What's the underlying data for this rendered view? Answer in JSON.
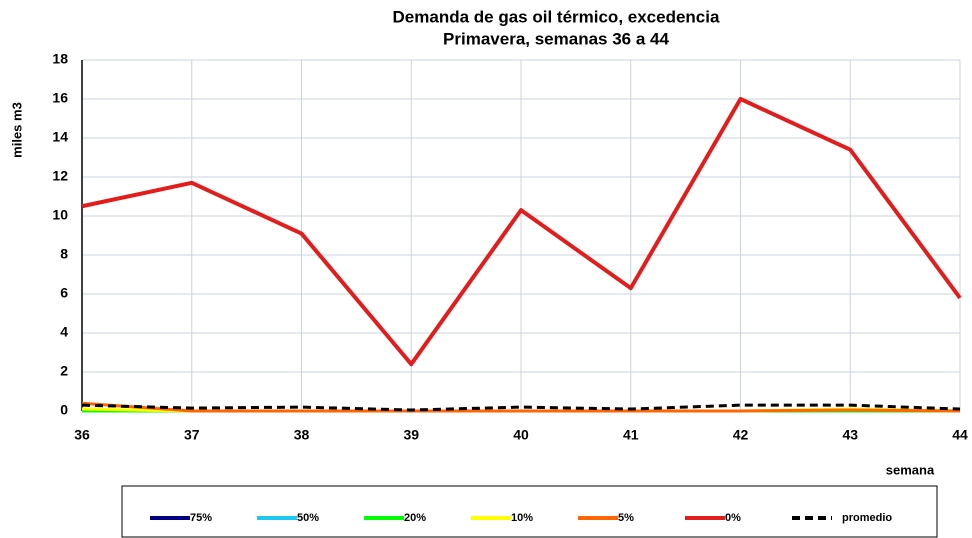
{
  "chart_data": {
    "type": "line",
    "title": "Demanda de gas oil térmico, excedencia",
    "subtitle": "Primavera, semanas 36 a 44",
    "x_label": "semana",
    "y_label": "miles m3",
    "x": [
      36,
      37,
      38,
      39,
      40,
      41,
      42,
      43,
      44
    ],
    "xlim": [
      36,
      44
    ],
    "xticks": [
      36,
      37,
      38,
      39,
      40,
      41,
      42,
      43,
      44
    ],
    "ylim": [
      0,
      18
    ],
    "yticks": [
      0,
      2,
      4,
      6,
      8,
      10,
      12,
      14,
      16,
      18
    ],
    "grid": true,
    "legend": "bottom",
    "series": [
      {
        "name": "75%",
        "color": "#000080",
        "values": [
          0,
          0,
          0,
          0,
          0,
          0,
          0,
          0,
          0
        ]
      },
      {
        "name": "50%",
        "color": "#1ec8f0",
        "values": [
          0,
          0,
          0,
          0,
          0,
          0,
          0,
          0,
          0
        ]
      },
      {
        "name": "20%",
        "color": "#00ff00",
        "values": [
          0,
          0,
          0,
          0,
          0,
          0,
          0,
          0,
          0
        ]
      },
      {
        "name": "10%",
        "color": "#ffff00",
        "values": [
          0.1,
          0,
          0,
          0,
          0,
          0,
          0,
          0.1,
          0
        ]
      },
      {
        "name": "5%",
        "color": "#ff6600",
        "values": [
          0.4,
          0,
          0,
          0,
          0,
          0,
          0,
          0.05,
          0
        ]
      },
      {
        "name": "0%",
        "color": "#e31c1c",
        "values": [
          10.5,
          11.7,
          9.1,
          2.4,
          10.3,
          6.3,
          16.0,
          13.4,
          5.8
        ]
      },
      {
        "name": "promedio",
        "color": "#000000",
        "dashed": true,
        "values": [
          0.3,
          0.15,
          0.2,
          0.05,
          0.2,
          0.1,
          0.3,
          0.3,
          0.1
        ]
      }
    ]
  }
}
